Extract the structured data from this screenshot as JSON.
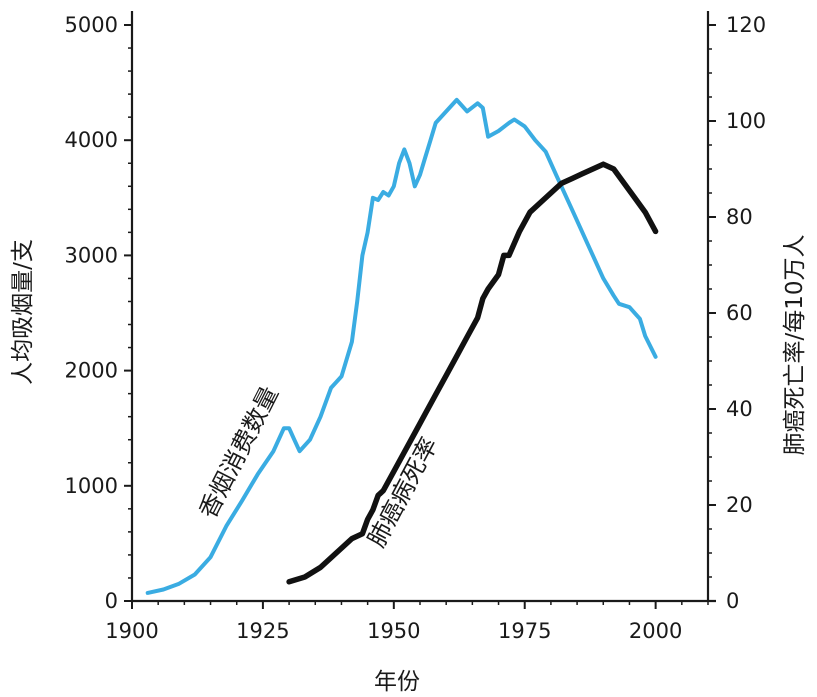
{
  "chart_data": {
    "type": "line",
    "xlabel": "年份",
    "ylabel_left": "人均吸烟量/支",
    "ylabel_right": "肺癌死亡率/每10万人",
    "x_ticks": [
      1900,
      1925,
      1950,
      1975,
      2000
    ],
    "x_range": [
      1900,
      2010
    ],
    "left_ticks": [
      0,
      1000,
      2000,
      3000,
      4000,
      5000
    ],
    "left_range": [
      0,
      5000
    ],
    "right_ticks": [
      0,
      20,
      40,
      60,
      80,
      100,
      120
    ],
    "right_range": [
      0,
      120
    ],
    "colors": {
      "cigarettes": "#3aace2",
      "lung_cancer": "#111111",
      "axis": "#1a1a1a"
    },
    "series": [
      {
        "name": "香烟消费数量",
        "axis": "left",
        "color": "#3aace2",
        "x": [
          1903,
          1906,
          1909,
          1912,
          1915,
          1918,
          1921,
          1924,
          1927,
          1929,
          1930,
          1931,
          1932,
          1934,
          1936,
          1938,
          1940,
          1942,
          1943,
          1944,
          1945,
          1946,
          1947,
          1948,
          1949,
          1950,
          1951,
          1952,
          1953,
          1954,
          1955,
          1956,
          1957,
          1958,
          1960,
          1962,
          1963,
          1964,
          1966,
          1967,
          1968,
          1970,
          1972,
          1973,
          1975,
          1977,
          1979,
          1981,
          1984,
          1987,
          1990,
          1992,
          1993,
          1995,
          1997,
          1998,
          2000
        ],
        "values": [
          70,
          100,
          150,
          230,
          380,
          650,
          870,
          1100,
          1300,
          1500,
          1500,
          1400,
          1300,
          1400,
          1600,
          1850,
          1950,
          2250,
          2600,
          3000,
          3200,
          3500,
          3480,
          3550,
          3520,
          3600,
          3800,
          3920,
          3800,
          3600,
          3700,
          3850,
          4000,
          4150,
          4250,
          4350,
          4300,
          4250,
          4320,
          4280,
          4030,
          4080,
          4150,
          4180,
          4120,
          4000,
          3900,
          3700,
          3400,
          3100,
          2800,
          2650,
          2580,
          2550,
          2450,
          2300,
          2120
        ]
      },
      {
        "name": "肺癌病死率",
        "axis": "right",
        "color": "#111111",
        "x": [
          1930,
          1933,
          1936,
          1939,
          1942,
          1944,
          1945,
          1946,
          1947,
          1948,
          1950,
          1952,
          1954,
          1956,
          1958,
          1960,
          1962,
          1964,
          1966,
          1967,
          1968,
          1970,
          1971,
          1972,
          1974,
          1976,
          1978,
          1980,
          1982,
          1984,
          1986,
          1988,
          1990,
          1992,
          1994,
          1996,
          1998,
          2000
        ],
        "values": [
          4,
          5,
          7,
          10,
          13,
          14,
          17,
          19,
          22,
          23,
          27,
          31,
          35,
          39,
          43,
          47,
          51,
          55,
          59,
          63,
          65,
          68,
          72,
          72,
          77,
          81,
          83,
          85,
          87,
          88,
          89,
          90,
          91,
          90,
          87,
          84,
          81,
          77
        ]
      }
    ],
    "annotations": [
      {
        "series": "香烟消费数量",
        "text": "香烟消费数量"
      },
      {
        "series": "肺癌病死率",
        "text": "肺癌病死率"
      }
    ]
  }
}
